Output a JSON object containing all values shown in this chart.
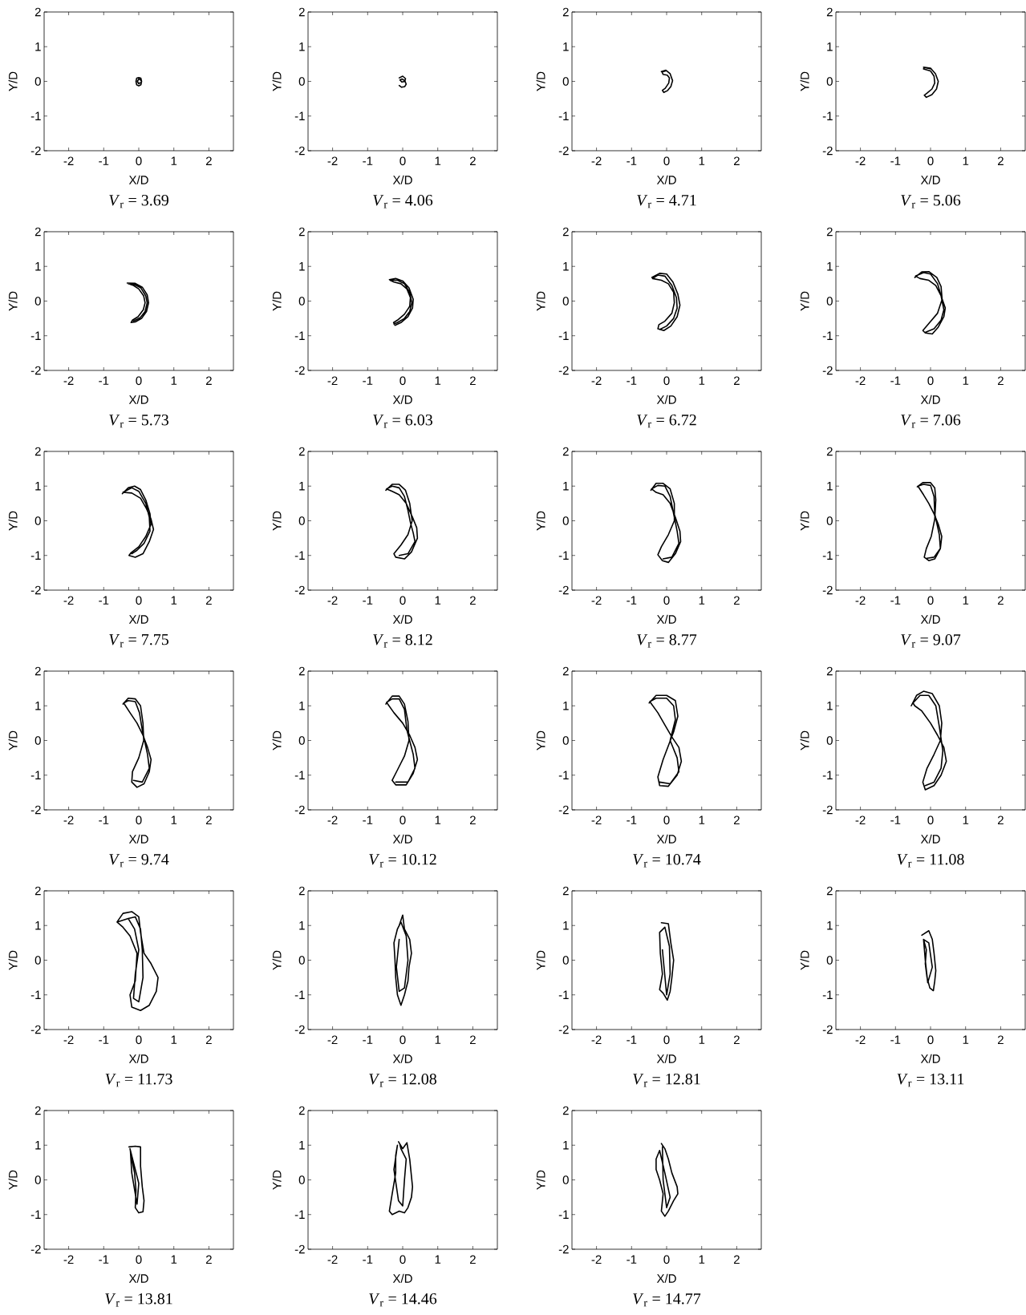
{
  "chart_data": [
    {
      "type": "line",
      "title": "*V*$_{r}$ = 3.69",
      "xlabel": "X/D",
      "ylabel": "Y/D",
      "xlim": [
        -2.7,
        2.7
      ],
      "ylim": [
        -2,
        2
      ],
      "xticks": [
        -2,
        -1,
        0,
        1,
        2
      ],
      "yticks": [
        -2,
        -1,
        0,
        1,
        2
      ],
      "color": "#000000",
      "x": [
        0.08,
        0.06,
        0,
        -0.06,
        -0.08,
        -0.06,
        0,
        0.06,
        0.08,
        0.04,
        0,
        -0.04,
        0,
        0.04
      ],
      "values": [
        0,
        0.09,
        0.11,
        0.09,
        0,
        -0.1,
        -0.13,
        -0.1,
        0,
        0.05,
        0.07,
        0,
        -0.07,
        -0.04
      ]
    },
    {
      "type": "line",
      "title": "*V*$_{r}$ = 4.06",
      "xlabel": "X/D",
      "ylabel": "Y/D",
      "xlim": [
        -2.7,
        2.7
      ],
      "ylim": [
        -2,
        2
      ],
      "xticks": [
        -2,
        -1,
        0,
        1,
        2
      ],
      "yticks": [
        -2,
        -1,
        0,
        1,
        2
      ],
      "color": "#000000",
      "x": [
        -0.1,
        0.0,
        0.08,
        0.06,
        -0.02,
        -0.08,
        -0.02,
        0.06,
        0.1,
        0.06,
        -0.03,
        -0.1
      ],
      "values": [
        0.1,
        0.15,
        0.08,
        0.0,
        -0.02,
        0.04,
        0.07,
        0.02,
        -0.08,
        -0.15,
        -0.17,
        -0.12
      ]
    },
    {
      "type": "line",
      "title": "*V*$_{r}$ = 4.71",
      "xlabel": "X/D",
      "ylabel": "Y/D",
      "xlim": [
        -2.7,
        2.7
      ],
      "ylim": [
        -2,
        2
      ],
      "xticks": [
        -2,
        -1,
        0,
        1,
        2
      ],
      "yticks": [
        -2,
        -1,
        0,
        1,
        2
      ],
      "color": "#000000",
      "x": [
        -0.15,
        -0.02,
        0.1,
        0.17,
        0.12,
        0.02,
        -0.08,
        -0.12,
        -0.04,
        0.06,
        0.08,
        0.02,
        -0.1,
        -0.13,
        -0.03
      ],
      "values": [
        0.28,
        0.32,
        0.22,
        0.02,
        -0.15,
        -0.27,
        -0.32,
        -0.26,
        -0.2,
        -0.05,
        0.1,
        0.18,
        0.2,
        0.27,
        0.3
      ]
    },
    {
      "type": "line",
      "title": "*V*$_{r}$ = 5.06",
      "xlabel": "X/D",
      "ylabel": "Y/D",
      "xlim": [
        -2.7,
        2.7
      ],
      "ylim": [
        -2,
        2
      ],
      "xticks": [
        -2,
        -1,
        0,
        1,
        2
      ],
      "yticks": [
        -2,
        -1,
        0,
        1,
        2
      ],
      "color": "#000000",
      "x": [
        -0.2,
        0.0,
        0.14,
        0.22,
        0.17,
        0.04,
        -0.12,
        -0.18,
        -0.1,
        0.04,
        0.12,
        0.1,
        0.0,
        -0.2,
        -0.18,
        0.02
      ],
      "values": [
        0.41,
        0.38,
        0.22,
        0.0,
        -0.22,
        -0.38,
        -0.46,
        -0.4,
        -0.34,
        -0.22,
        -0.05,
        0.15,
        0.3,
        0.36,
        0.4,
        0.36
      ]
    },
    {
      "type": "line",
      "title": "*V*$_{r}$ = 5.73",
      "xlabel": "X/D",
      "ylabel": "Y/D",
      "xlim": [
        -2.7,
        2.7
      ],
      "ylim": [
        -2,
        2
      ],
      "xticks": [
        -2,
        -1,
        0,
        1,
        2
      ],
      "yticks": [
        -2,
        -1,
        0,
        1,
        2
      ],
      "color": "#000000",
      "x": [
        -0.33,
        -0.1,
        0.1,
        0.24,
        0.28,
        0.22,
        0.08,
        -0.1,
        -0.22,
        -0.18,
        -0.02,
        0.13,
        0.18,
        0.14,
        0.0,
        -0.15,
        -0.3,
        -0.12,
        0.06,
        0.2,
        0.24,
        0.18,
        0.04,
        -0.15
      ],
      "values": [
        0.52,
        0.51,
        0.4,
        0.18,
        -0.05,
        -0.3,
        -0.5,
        -0.6,
        -0.62,
        -0.55,
        -0.45,
        -0.25,
        -0.05,
        0.15,
        0.35,
        0.45,
        0.5,
        0.48,
        0.38,
        0.15,
        -0.05,
        -0.3,
        -0.48,
        -0.58
      ]
    },
    {
      "type": "line",
      "title": "*V*$_{r}$ = 6.03",
      "xlabel": "X/D",
      "ylabel": "Y/D",
      "xlim": [
        -2.7,
        2.7
      ],
      "ylim": [
        -2,
        2
      ],
      "xticks": [
        -2,
        -1,
        0,
        1,
        2
      ],
      "yticks": [
        -2,
        -1,
        0,
        1,
        2
      ],
      "color": "#000000",
      "x": [
        -0.38,
        -0.2,
        0.0,
        0.18,
        0.3,
        0.28,
        0.15,
        -0.05,
        -0.22,
        -0.26,
        -0.15,
        0.05,
        0.2,
        0.22,
        0.12,
        -0.05,
        -0.25,
        -0.36,
        -0.15,
        0.05,
        0.2,
        0.26,
        0.2,
        0.05,
        -0.15,
        -0.25
      ],
      "values": [
        0.62,
        0.65,
        0.58,
        0.38,
        0.05,
        -0.2,
        -0.45,
        -0.62,
        -0.7,
        -0.62,
        -0.55,
        -0.38,
        -0.15,
        0.1,
        0.35,
        0.5,
        0.55,
        0.6,
        0.6,
        0.5,
        0.25,
        -0.05,
        -0.3,
        -0.5,
        -0.62,
        -0.66
      ]
    },
    {
      "type": "line",
      "title": "*V*$_{r}$ = 6.72",
      "xlabel": "X/D",
      "ylabel": "Y/D",
      "xlim": [
        -2.7,
        2.7
      ],
      "ylim": [
        -2,
        2
      ],
      "xticks": [
        -2,
        -1,
        0,
        1,
        2
      ],
      "yticks": [
        -2,
        -1,
        0,
        1,
        2
      ],
      "color": "#000000",
      "x": [
        -0.42,
        -0.2,
        0.0,
        0.18,
        0.32,
        0.38,
        0.3,
        0.12,
        -0.08,
        -0.25,
        -0.22,
        -0.05,
        0.15,
        0.22,
        0.2,
        0.05,
        -0.15,
        -0.4,
        -0.25,
        -0.05,
        0.15,
        0.28,
        0.3,
        0.2,
        0.0,
        -0.2
      ],
      "values": [
        0.68,
        0.8,
        0.78,
        0.55,
        0.2,
        -0.12,
        -0.45,
        -0.72,
        -0.85,
        -0.8,
        -0.68,
        -0.58,
        -0.35,
        -0.05,
        0.25,
        0.5,
        0.6,
        0.65,
        0.75,
        0.72,
        0.45,
        0.1,
        -0.2,
        -0.5,
        -0.72,
        -0.82
      ]
    },
    {
      "type": "line",
      "title": "*V*$_{r}$ = 7.06",
      "xlabel": "X/D",
      "ylabel": "Y/D",
      "xlim": [
        -2.7,
        2.7
      ],
      "ylim": [
        -2,
        2
      ],
      "xticks": [
        -2,
        -1,
        0,
        1,
        2
      ],
      "yticks": [
        -2,
        -1,
        0,
        1,
        2
      ],
      "color": "#000000",
      "x": [
        -0.45,
        -0.25,
        -0.05,
        0.18,
        0.3,
        0.33,
        0.2,
        -0.05,
        -0.22,
        -0.15,
        0.05,
        0.22,
        0.38,
        0.42,
        0.3,
        0.15,
        -0.05,
        -0.3,
        -0.43,
        -0.2,
        0.0,
        0.2,
        0.3,
        0.38,
        0.3,
        0.1,
        -0.15
      ],
      "values": [
        0.68,
        0.84,
        0.85,
        0.68,
        0.42,
        0.05,
        -0.35,
        -0.65,
        -0.85,
        -0.92,
        -0.95,
        -0.75,
        -0.45,
        -0.2,
        0.15,
        0.45,
        0.6,
        0.65,
        0.72,
        0.82,
        0.78,
        0.5,
        0.15,
        -0.25,
        -0.55,
        -0.8,
        -0.9
      ]
    },
    {
      "type": "line",
      "title": "*V*$_{r}$ = 7.75",
      "xlabel": "X/D",
      "ylabel": "Y/D",
      "xlim": [
        -2.7,
        2.7
      ],
      "ylim": [
        -2,
        2
      ],
      "xticks": [
        -2,
        -1,
        0,
        1,
        2
      ],
      "yticks": [
        -2,
        -1,
        0,
        1,
        2
      ],
      "color": "#000000",
      "x": [
        -0.47,
        -0.3,
        -0.12,
        0.05,
        0.2,
        0.32,
        0.35,
        0.2,
        0.0,
        -0.22,
        -0.28,
        -0.1,
        0.12,
        0.3,
        0.42,
        0.35,
        0.22,
        0.05,
        -0.2,
        -0.45,
        -0.2,
        0.0,
        0.2,
        0.3,
        0.32,
        0.15,
        -0.05,
        -0.2
      ],
      "values": [
        0.78,
        0.95,
        1.0,
        0.9,
        0.6,
        0.2,
        -0.1,
        -0.45,
        -0.75,
        -0.92,
        -1.0,
        -1.05,
        -0.95,
        -0.6,
        -0.25,
        0.05,
        0.35,
        0.65,
        0.8,
        0.82,
        0.95,
        0.85,
        0.5,
        0.1,
        -0.3,
        -0.65,
        -0.85,
        -0.95
      ]
    },
    {
      "type": "line",
      "title": "*V*$_{r}$ = 8.12",
      "xlabel": "X/D",
      "ylabel": "Y/D",
      "xlim": [
        -2.7,
        2.7
      ],
      "ylim": [
        -2,
        2
      ],
      "xticks": [
        -2,
        -1,
        0,
        1,
        2
      ],
      "yticks": [
        -2,
        -1,
        0,
        1,
        2
      ],
      "color": "#000000",
      "x": [
        -0.48,
        -0.3,
        -0.1,
        0.08,
        0.2,
        0.27,
        0.15,
        -0.05,
        -0.25,
        -0.2,
        0.05,
        0.25,
        0.42,
        0.4,
        0.28,
        0.1,
        -0.1,
        -0.3,
        -0.46,
        -0.3,
        -0.1,
        0.05,
        0.15,
        0.22,
        0.3,
        0.35,
        0.15,
        -0.1
      ],
      "values": [
        0.88,
        1.05,
        1.05,
        0.88,
        0.5,
        0.0,
        -0.4,
        -0.7,
        -0.95,
        -1.05,
        -1.1,
        -0.9,
        -0.5,
        -0.2,
        0.1,
        0.5,
        0.75,
        0.85,
        0.92,
        1.0,
        0.95,
        0.7,
        0.3,
        -0.05,
        -0.35,
        -0.6,
        -0.95,
        -1.0
      ]
    },
    {
      "type": "line",
      "title": "*V*$_{r}$ = 8.77",
      "xlabel": "X/D",
      "ylabel": "Y/D",
      "xlim": [
        -2.7,
        2.7
      ],
      "ylim": [
        -2,
        2
      ],
      "xticks": [
        -2,
        -1,
        0,
        1,
        2
      ],
      "yticks": [
        -2,
        -1,
        0,
        1,
        2
      ],
      "color": "#000000",
      "x": [
        -0.45,
        -0.3,
        -0.1,
        0.1,
        0.22,
        0.22,
        0.05,
        -0.15,
        -0.25,
        -0.12,
        0.05,
        0.25,
        0.4,
        0.38,
        0.25,
        0.1,
        -0.1,
        -0.3,
        -0.43,
        -0.25,
        -0.05,
        0.1,
        0.18,
        0.3,
        0.35,
        0.15,
        -0.1
      ],
      "values": [
        0.88,
        1.08,
        1.08,
        0.92,
        0.5,
        0.0,
        -0.4,
        -0.75,
        -0.98,
        -1.15,
        -1.2,
        -0.95,
        -0.6,
        -0.3,
        0.1,
        0.5,
        0.75,
        0.82,
        0.92,
        1.02,
        1.0,
        0.7,
        0.3,
        -0.3,
        -0.65,
        -1.05,
        -1.1
      ]
    },
    {
      "type": "line",
      "title": "*V*$_{r}$ = 9.07",
      "xlabel": "X/D",
      "ylabel": "Y/D",
      "xlim": [
        -2.7,
        2.7
      ],
      "ylim": [
        -2,
        2
      ],
      "xticks": [
        -2,
        -1,
        0,
        1,
        2
      ],
      "yticks": [
        -2,
        -1,
        0,
        1,
        2
      ],
      "color": "#000000",
      "x": [
        -0.38,
        -0.22,
        0.0,
        0.12,
        0.15,
        0.12,
        0.02,
        -0.12,
        -0.18,
        -0.05,
        0.12,
        0.28,
        0.32,
        0.22,
        0.1,
        -0.05,
        -0.2,
        -0.36,
        -0.2,
        0.0,
        0.1,
        0.12,
        0.25,
        0.28,
        0.1,
        -0.1
      ],
      "values": [
        0.98,
        1.1,
        1.1,
        0.95,
        0.6,
        0.05,
        -0.45,
        -0.8,
        -1.05,
        -1.15,
        -1.1,
        -0.8,
        -0.45,
        -0.1,
        0.2,
        0.5,
        0.75,
        1.0,
        1.05,
        1.02,
        0.7,
        0.2,
        -0.4,
        -0.8,
        -1.05,
        -1.08
      ]
    },
    {
      "type": "line",
      "title": "*V*$_{r}$ = 9.74",
      "xlabel": "X/D",
      "ylabel": "Y/D",
      "xlim": [
        -2.7,
        2.7
      ],
      "ylim": [
        -2,
        2
      ],
      "xticks": [
        -2,
        -1,
        0,
        1,
        2
      ],
      "yticks": [
        -2,
        -1,
        0,
        1,
        2
      ],
      "color": "#000000",
      "x": [
        -0.45,
        -0.3,
        -0.1,
        0.05,
        0.12,
        0.14,
        0.0,
        -0.18,
        -0.2,
        -0.05,
        0.15,
        0.3,
        0.35,
        0.25,
        0.12,
        -0.05,
        -0.25,
        -0.43,
        -0.3,
        -0.1,
        0.02,
        0.1,
        0.25,
        0.3,
        0.1,
        -0.15
      ],
      "values": [
        1.05,
        1.22,
        1.2,
        1.0,
        0.5,
        0.0,
        -0.5,
        -0.9,
        -1.2,
        -1.35,
        -1.25,
        -0.9,
        -0.55,
        -0.2,
        0.15,
        0.5,
        0.8,
        1.08,
        1.15,
        1.12,
        0.8,
        0.3,
        -0.4,
        -0.8,
        -1.2,
        -1.15
      ]
    },
    {
      "type": "line",
      "title": "*V*$_{r}$ = 10.12",
      "xlabel": "X/D",
      "ylabel": "Y/D",
      "xlim": [
        -2.7,
        2.7
      ],
      "ylim": [
        -2,
        2
      ],
      "xticks": [
        -2,
        -1,
        0,
        1,
        2
      ],
      "yticks": [
        -2,
        -1,
        0,
        1,
        2
      ],
      "color": "#000000",
      "x": [
        -0.48,
        -0.3,
        -0.1,
        0.05,
        0.15,
        0.18,
        0.05,
        -0.15,
        -0.3,
        -0.2,
        0.1,
        0.3,
        0.42,
        0.35,
        0.2,
        0.0,
        -0.25,
        -0.46,
        -0.3,
        -0.1,
        0.05,
        0.12,
        0.3,
        0.35,
        0.15,
        -0.2
      ],
      "values": [
        1.05,
        1.28,
        1.28,
        1.05,
        0.55,
        0.0,
        -0.45,
        -0.85,
        -1.15,
        -1.28,
        -1.28,
        -0.95,
        -0.55,
        -0.2,
        0.15,
        0.5,
        0.8,
        1.1,
        1.2,
        1.2,
        0.9,
        0.3,
        -0.4,
        -0.8,
        -1.2,
        -1.2
      ]
    },
    {
      "type": "line",
      "title": "*V*$_{r}$ = 10.74",
      "xlabel": "X/D",
      "ylabel": "Y/D",
      "xlim": [
        -2.7,
        2.7
      ],
      "ylim": [
        -2,
        2
      ],
      "xticks": [
        -2,
        -1,
        0,
        1,
        2
      ],
      "yticks": [
        -2,
        -1,
        0,
        1,
        2
      ],
      "color": "#000000",
      "x": [
        -0.5,
        -0.3,
        0.0,
        0.25,
        0.32,
        0.2,
        0.05,
        -0.1,
        -0.25,
        -0.2,
        0.05,
        0.3,
        0.42,
        0.35,
        0.15,
        -0.05,
        -0.25,
        -0.48,
        -0.3,
        0.0,
        0.2,
        0.25,
        0.1,
        0.3,
        0.35,
        0.1,
        -0.2
      ],
      "values": [
        1.08,
        1.3,
        1.3,
        1.15,
        0.7,
        0.25,
        -0.15,
        -0.55,
        -1.05,
        -1.3,
        -1.32,
        -1.0,
        -0.6,
        -0.2,
        0.1,
        0.45,
        0.8,
        1.12,
        1.22,
        1.22,
        1.0,
        0.6,
        0.0,
        -0.5,
        -0.9,
        -1.25,
        -1.2
      ]
    },
    {
      "type": "line",
      "title": "*V*$_{r}$ = 11.08",
      "xlabel": "X/D",
      "ylabel": "Y/D",
      "xlim": [
        -2.7,
        2.7
      ],
      "ylim": [
        -2,
        2
      ],
      "xticks": [
        -2,
        -1,
        0,
        1,
        2
      ],
      "yticks": [
        -2,
        -1,
        0,
        1,
        2
      ],
      "color": "#000000",
      "x": [
        -0.55,
        -0.4,
        -0.2,
        0.05,
        0.25,
        0.32,
        0.28,
        0.1,
        -0.1,
        -0.22,
        -0.15,
        0.1,
        0.3,
        0.45,
        0.38,
        0.2,
        0.0,
        -0.25,
        -0.45,
        -0.5,
        -0.3,
        -0.05,
        0.15,
        0.25,
        0.35,
        0.3,
        0.1,
        -0.15
      ],
      "values": [
        1.0,
        1.3,
        1.42,
        1.35,
        1.0,
        0.5,
        0.0,
        -0.4,
        -0.8,
        -1.2,
        -1.42,
        -1.3,
        -1.0,
        -0.6,
        -0.2,
        0.15,
        0.5,
        0.85,
        1.0,
        1.08,
        1.3,
        1.3,
        1.0,
        0.4,
        -0.3,
        -0.8,
        -1.2,
        -1.3
      ]
    },
    {
      "type": "line",
      "title": "*V*$_{r}$ = 11.73",
      "xlabel": "X/D",
      "ylabel": "Y/D",
      "xlim": [
        -2.7,
        2.7
      ],
      "ylim": [
        -2,
        2
      ],
      "xticks": [
        -2,
        -1,
        0,
        1,
        2
      ],
      "yticks": [
        -2,
        -1,
        0,
        1,
        2
      ],
      "color": "#000000",
      "x": [
        -0.62,
        -0.45,
        -0.2,
        0.0,
        0.05,
        0.15,
        0.35,
        0.55,
        0.5,
        0.3,
        0.05,
        -0.2,
        -0.25,
        -0.1,
        -0.05,
        -0.25,
        -0.45,
        -0.62,
        -0.3,
        -0.1,
        0.05,
        0.1,
        0.12,
        0.0,
        -0.15,
        -0.1,
        0.0,
        -0.12,
        -0.3
      ],
      "values": [
        1.1,
        1.35,
        1.4,
        1.25,
        0.8,
        0.2,
        -0.1,
        -0.5,
        -0.9,
        -1.3,
        -1.45,
        -1.35,
        -1.0,
        -0.6,
        0.2,
        0.7,
        0.95,
        1.1,
        1.2,
        1.25,
        0.9,
        0.3,
        -0.5,
        -1.2,
        -1.1,
        -0.4,
        0.3,
        0.9,
        1.2
      ]
    },
    {
      "type": "line",
      "title": "*V*$_{r}$ = 12.08",
      "xlabel": "X/D",
      "ylabel": "Y/D",
      "xlim": [
        -2.7,
        2.7
      ],
      "ylim": [
        -2,
        2
      ],
      "xticks": [
        -2,
        -1,
        0,
        1,
        2
      ],
      "yticks": [
        -2,
        -1,
        0,
        1,
        2
      ],
      "color": "#000000",
      "x": [
        -0.1,
        0.0,
        0.05,
        0.2,
        0.25,
        0.18,
        0.15,
        0.05,
        -0.05,
        -0.15,
        -0.2,
        -0.22,
        -0.25,
        -0.15,
        -0.05,
        0.1,
        0.15,
        0.05,
        -0.1,
        -0.18,
        -0.1
      ],
      "values": [
        1.0,
        1.3,
        0.9,
        0.6,
        0.2,
        -0.2,
        -0.6,
        -1.0,
        -1.3,
        -1.0,
        -0.5,
        0.0,
        0.5,
        0.9,
        1.1,
        0.7,
        0.0,
        -0.8,
        -0.9,
        -0.2,
        0.6
      ]
    },
    {
      "type": "line",
      "title": "*V*$_{r}$ = 12.81",
      "xlabel": "X/D",
      "ylabel": "Y/D",
      "xlim": [
        -2.7,
        2.7
      ],
      "ylim": [
        -2,
        2
      ],
      "xticks": [
        -2,
        -1,
        0,
        1,
        2
      ],
      "yticks": [
        -2,
        -1,
        0,
        1,
        2
      ],
      "color": "#000000",
      "x": [
        -0.15,
        0.05,
        0.12,
        0.2,
        0.15,
        0.1,
        0.02,
        -0.1,
        -0.2,
        -0.12,
        -0.18,
        -0.2,
        -0.05,
        0.08,
        0.1,
        0.0,
        -0.12
      ],
      "values": [
        1.08,
        1.05,
        0.5,
        0.0,
        -0.5,
        -0.9,
        -1.15,
        -0.95,
        -0.85,
        -0.4,
        0.2,
        0.8,
        0.95,
        0.4,
        -0.4,
        -1.0,
        0.3
      ]
    },
    {
      "type": "line",
      "title": "*V*$_{r}$ = 13.11",
      "xlabel": "X/D",
      "ylabel": "Y/D",
      "xlim": [
        -2.7,
        2.7
      ],
      "ylim": [
        -2,
        2
      ],
      "xticks": [
        -2,
        -1,
        0,
        1,
        2
      ],
      "yticks": [
        -2,
        -1,
        0,
        1,
        2
      ],
      "color": "#000000",
      "x": [
        -0.25,
        -0.05,
        0.05,
        0.1,
        0.15,
        0.12,
        0.08,
        -0.02,
        -0.1,
        -0.15,
        -0.12,
        -0.2,
        -0.05,
        0.05,
        -0.08,
        -0.15,
        -0.2
      ],
      "values": [
        0.72,
        0.85,
        0.6,
        0.2,
        -0.3,
        -0.6,
        -0.88,
        -0.8,
        -0.5,
        -0.1,
        0.3,
        0.6,
        0.5,
        -0.2,
        -0.65,
        0.0,
        0.6
      ]
    },
    {
      "type": "line",
      "title": "*V*$_{r}$ = 13.81",
      "xlabel": "X/D",
      "ylabel": "Y/D",
      "xlim": [
        -2.7,
        2.7
      ],
      "ylim": [
        -2,
        2
      ],
      "xticks": [
        -2,
        -1,
        0,
        1,
        2
      ],
      "yticks": [
        -2,
        -1,
        0,
        1,
        2
      ],
      "color": "#000000",
      "x": [
        -0.28,
        -0.1,
        0.05,
        0.05,
        0.1,
        0.15,
        0.12,
        0.0,
        -0.1,
        -0.08,
        -0.12,
        -0.2,
        -0.25,
        -0.15,
        0.0,
        -0.05,
        -0.2,
        -0.24
      ],
      "values": [
        0.95,
        0.97,
        0.95,
        0.4,
        -0.2,
        -0.6,
        -0.92,
        -0.95,
        -0.8,
        -0.3,
        0.2,
        0.6,
        0.9,
        0.5,
        -0.1,
        -0.7,
        0.2,
        0.85
      ]
    },
    {
      "type": "line",
      "title": "*V*$_{r}$ = 14.46",
      "xlabel": "X/D",
      "ylabel": "Y/D",
      "xlim": [
        -2.7,
        2.7
      ],
      "ylim": [
        -2,
        2
      ],
      "xticks": [
        -2,
        -1,
        0,
        1,
        2
      ],
      "yticks": [
        -2,
        -1,
        0,
        1,
        2
      ],
      "color": "#000000",
      "x": [
        -0.12,
        0.0,
        0.12,
        0.2,
        0.28,
        0.25,
        0.15,
        0.05,
        -0.1,
        -0.3,
        -0.38,
        -0.3,
        -0.2,
        -0.2,
        -0.15,
        -0.25,
        -0.12,
        0.0,
        0.05,
        0.1,
        -0.05,
        -0.08
      ],
      "values": [
        1.1,
        0.9,
        1.07,
        0.6,
        -0.2,
        -0.5,
        -0.8,
        -0.95,
        -0.9,
        -1.0,
        -0.9,
        -0.4,
        0.2,
        0.7,
        1.0,
        0.3,
        -0.6,
        -0.75,
        0.0,
        0.6,
        0.9,
        1.02
      ]
    },
    {
      "type": "line",
      "title": "*V*$_{r}$ = 14.77",
      "xlabel": "X/D",
      "ylabel": "Y/D",
      "xlim": [
        -2.7,
        2.7
      ],
      "ylim": [
        -2,
        2
      ],
      "xticks": [
        -2,
        -1,
        0,
        1,
        2
      ],
      "yticks": [
        -2,
        -1,
        0,
        1,
        2
      ],
      "color": "#000000",
      "x": [
        -0.15,
        -0.05,
        0.05,
        0.15,
        0.3,
        0.32,
        0.2,
        0.05,
        -0.05,
        -0.15,
        -0.1,
        -0.2,
        -0.3,
        -0.3,
        -0.2,
        -0.05,
        0.1,
        0.0,
        -0.1,
        -0.12
      ],
      "values": [
        1.05,
        0.9,
        0.6,
        0.2,
        -0.2,
        -0.4,
        -0.6,
        -0.9,
        -1.05,
        -0.9,
        -0.4,
        0.0,
        0.3,
        0.6,
        0.85,
        0.2,
        -0.5,
        -0.8,
        0.0,
        0.95
      ]
    }
  ]
}
